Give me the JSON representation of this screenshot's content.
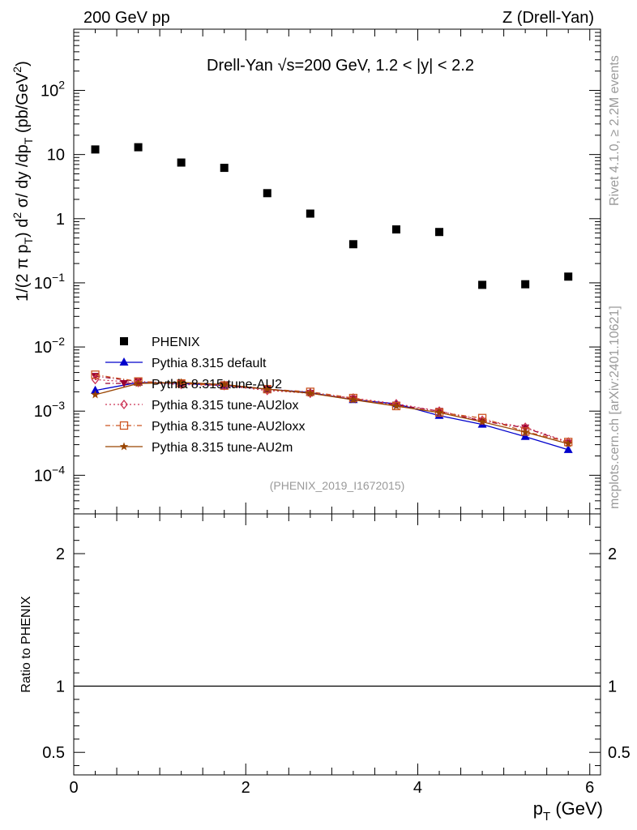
{
  "header": {
    "left": "200 GeV pp",
    "right": "Z (Drell-Yan)"
  },
  "side": {
    "rivet": "Rivet 4.1.0, ≥ 2.2M events",
    "mcplots": "mcplots.cern.ch [arXiv:2401.10621]"
  },
  "ratio_ylabel": "Ratio to PHENIX",
  "chart_data": [
    {
      "type": "scatter",
      "title": "Drell-Yan √s=200 GeV,  1.2 < |y| < 2.2",
      "ylabel_parts": {
        "prefix": "1/(2 π p",
        "sub1": "T",
        "mid": ") d",
        "sup1": "2",
        "rest": " σ/ dy /dp",
        "sub2": "T",
        "unit": " (pb/GeV",
        "sup2": "2",
        "end": ")"
      },
      "xlabel_parts": {
        "prefix": "p",
        "sub": "T",
        "suffix": " (GeV)"
      },
      "xlim": [
        0,
        6.125
      ],
      "ylim": [
        2.5e-05,
        900
      ],
      "yscale": "log",
      "x_ticks": [
        0,
        2,
        4,
        6
      ],
      "y_ticks": [
        {
          "value": 0.0001,
          "mant": "10",
          "exp": "−4"
        },
        {
          "value": 0.001,
          "mant": "10",
          "exp": "−3"
        },
        {
          "value": 0.01,
          "mant": "10",
          "exp": "−2"
        },
        {
          "value": 0.1,
          "mant": "10",
          "exp": "−1"
        },
        {
          "value": 1,
          "mant": "1",
          "exp": ""
        },
        {
          "value": 10,
          "mant": "10",
          "exp": ""
        },
        {
          "value": 100,
          "mant": "10",
          "exp": "2"
        }
      ],
      "reference": "(PHENIX_2019_I1672015)",
      "legend_position": "lower-left",
      "x": [
        0.25,
        0.75,
        1.25,
        1.75,
        2.25,
        2.75,
        3.25,
        3.75,
        4.25,
        4.75,
        5.25,
        5.75
      ],
      "series": [
        {
          "name": "PHENIX",
          "marker": "square",
          "color": "#000000",
          "line": "none",
          "values": [
            12,
            13,
            7.5,
            6.2,
            2.5,
            1.2,
            0.4,
            0.68,
            0.62,
            0.093,
            0.095,
            0.125
          ]
        },
        {
          "name": "Pythia 8.315 default",
          "marker": "triangle",
          "color": "#0000cc",
          "line": "solid",
          "values": [
            0.0021,
            0.0028,
            0.0027,
            0.0025,
            0.0022,
            0.00195,
            0.0015,
            0.0013,
            0.00085,
            0.00062,
            0.0004,
            0.00025
          ]
        },
        {
          "name": "Pythia 8.315 tune-AU2",
          "marker": "triangle-down",
          "color": "#990033",
          "line": "dashdot",
          "values": [
            0.0035,
            0.0029,
            0.0027,
            0.0026,
            0.0022,
            0.0019,
            0.00155,
            0.00125,
            0.001,
            0.0007,
            0.00055,
            0.00032
          ]
        },
        {
          "name": "Pythia 8.315 tune-AU2lox",
          "marker": "diamond-open",
          "color": "#cc3355",
          "line": "dotted",
          "values": [
            0.0031,
            0.0028,
            0.0026,
            0.0025,
            0.0021,
            0.0019,
            0.0016,
            0.0013,
            0.001,
            0.00072,
            0.00056,
            0.00033
          ]
        },
        {
          "name": "Pythia 8.315 tune-AU2loxx",
          "marker": "square-open",
          "color": "#cc5522",
          "line": "dashdot",
          "values": [
            0.0037,
            0.0029,
            0.0027,
            0.0025,
            0.0022,
            0.002,
            0.0016,
            0.0012,
            0.00095,
            0.00078,
            0.00048,
            0.00033
          ]
        },
        {
          "name": "Pythia 8.315 tune-AU2m",
          "marker": "star",
          "color": "#994400",
          "line": "solid",
          "values": [
            0.0018,
            0.0027,
            0.0028,
            0.0026,
            0.0022,
            0.0019,
            0.0015,
            0.0012,
            0.00095,
            0.00068,
            0.00047,
            0.00031
          ]
        }
      ]
    },
    {
      "type": "line",
      "ylabel": "Ratio to PHENIX",
      "xlim": [
        0,
        6.125
      ],
      "ylim": [
        0.33,
        2.3
      ],
      "y_ticks": [
        0.5,
        1,
        2
      ],
      "reference_line": 1,
      "series": []
    }
  ]
}
